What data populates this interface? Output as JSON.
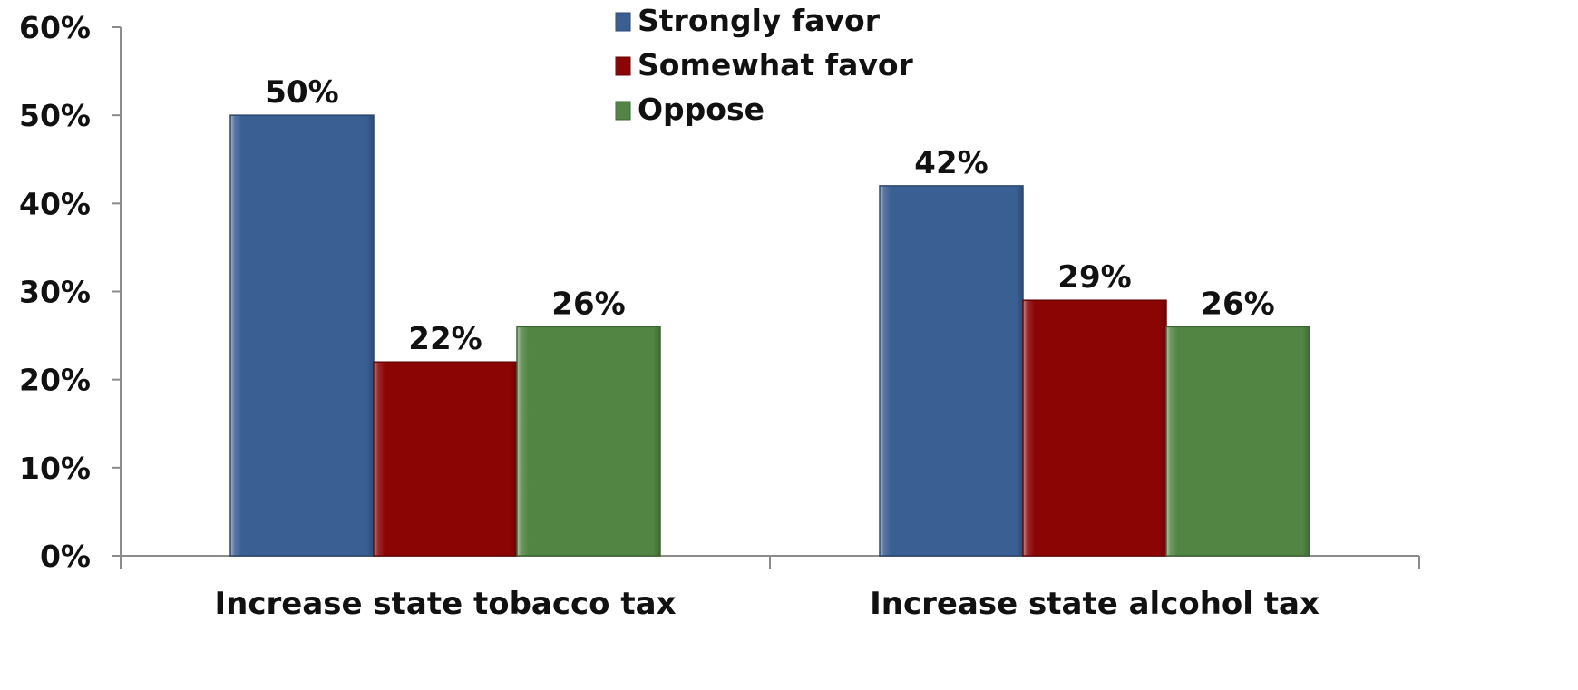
{
  "chart_data": {
    "type": "bar",
    "categories": [
      "Increase state tobacco tax",
      "Increase state alcohol tax"
    ],
    "series": [
      {
        "name": "Strongly favor",
        "values": [
          50,
          42
        ],
        "color": "#3A5F92"
      },
      {
        "name": "Somewhat favor",
        "values": [
          22,
          29
        ],
        "color": "#8B0505"
      },
      {
        "name": "Oppose",
        "values": [
          26,
          26
        ],
        "color": "#528544"
      }
    ],
    "data_labels": [
      [
        "50%",
        "42%"
      ],
      [
        "22%",
        "29%"
      ],
      [
        "26%",
        "26%"
      ]
    ],
    "y_ticks": [
      "0%",
      "10%",
      "20%",
      "30%",
      "40%",
      "50%",
      "60%"
    ],
    "ylim": [
      0,
      60
    ],
    "y_unit": "%",
    "grid": false,
    "legend_position": "top-center",
    "title": "",
    "xlabel": "",
    "ylabel": ""
  }
}
